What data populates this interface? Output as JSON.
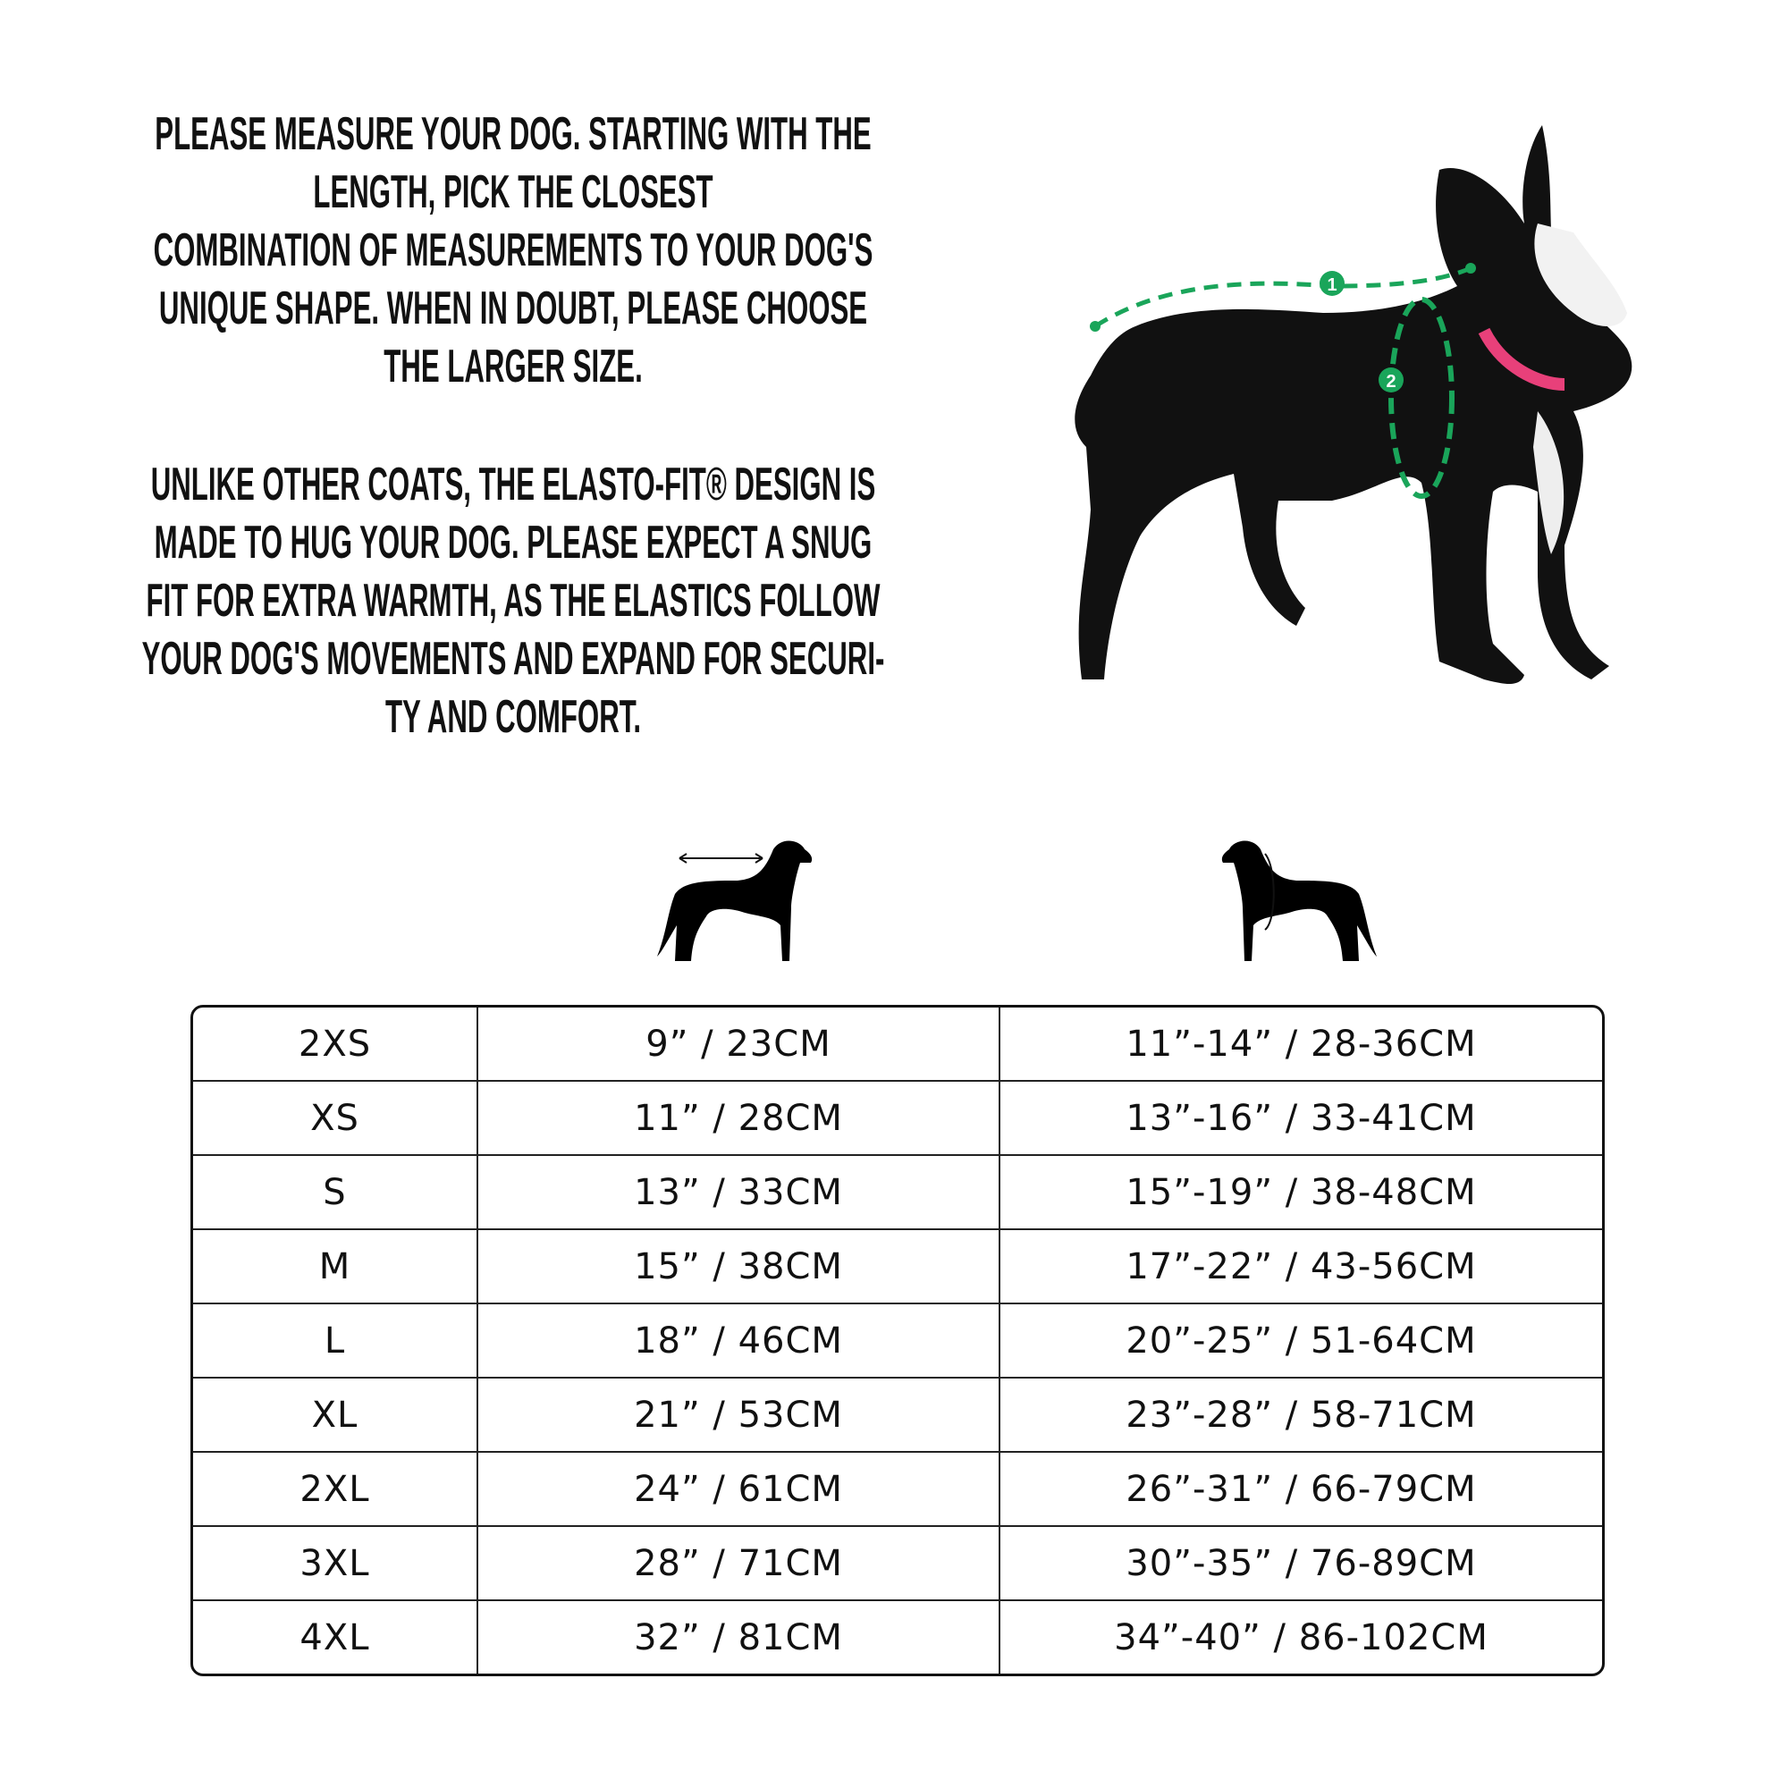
{
  "intro": {
    "paragraph1": [
      "PLEASE MEASURE YOUR DOG. STARTING WITH THE",
      "LENGTH, PICK THE CLOSEST",
      "COMBINATION OF MEASUREMENTS TO YOUR DOG'S",
      "UNIQUE SHAPE. WHEN IN DOUBT, PLEASE CHOOSE",
      "THE LARGER SIZE."
    ],
    "paragraph2": [
      "UNLIKE OTHER COATS, THE ELASTO-FIT® DESIGN IS",
      "MADE TO HUG YOUR DOG. PLEASE EXPECT A SNUG",
      "FIT FOR EXTRA WARMTH, AS THE ELASTICS FOLLOW",
      "YOUR DOG'S MOVEMENTS AND EXPAND FOR SECURI-",
      "TY AND COMFORT."
    ]
  },
  "photo": {
    "marker1": "1",
    "marker2": "2",
    "marker_color": "#1aa55a",
    "collar_color": "#e8407a"
  },
  "icons": {
    "length": "dog-length-icon",
    "chest": "dog-chest-girth-icon"
  },
  "size_table": {
    "rows": [
      [
        "2XS",
        "9” / 23CM",
        "11”-14” / 28-36CM"
      ],
      [
        "XS",
        "11” / 28CM",
        "13”-16” / 33-41CM"
      ],
      [
        "S",
        "13” / 33CM",
        "15”-19” / 38-48CM"
      ],
      [
        "M",
        "15” / 38CM",
        "17”-22” / 43-56CM"
      ],
      [
        "L",
        "18” / 46CM",
        "20”-25” / 51-64CM"
      ],
      [
        "XL",
        "21” / 53CM",
        "23”-28” / 58-71CM"
      ],
      [
        "2XL",
        "24” / 61CM",
        "26”-31” / 66-79CM"
      ],
      [
        "3XL",
        "28” / 71CM",
        "30”-35” / 76-89CM"
      ],
      [
        "4XL",
        "32” / 81CM",
        "34”-40” / 86-102CM"
      ]
    ]
  }
}
